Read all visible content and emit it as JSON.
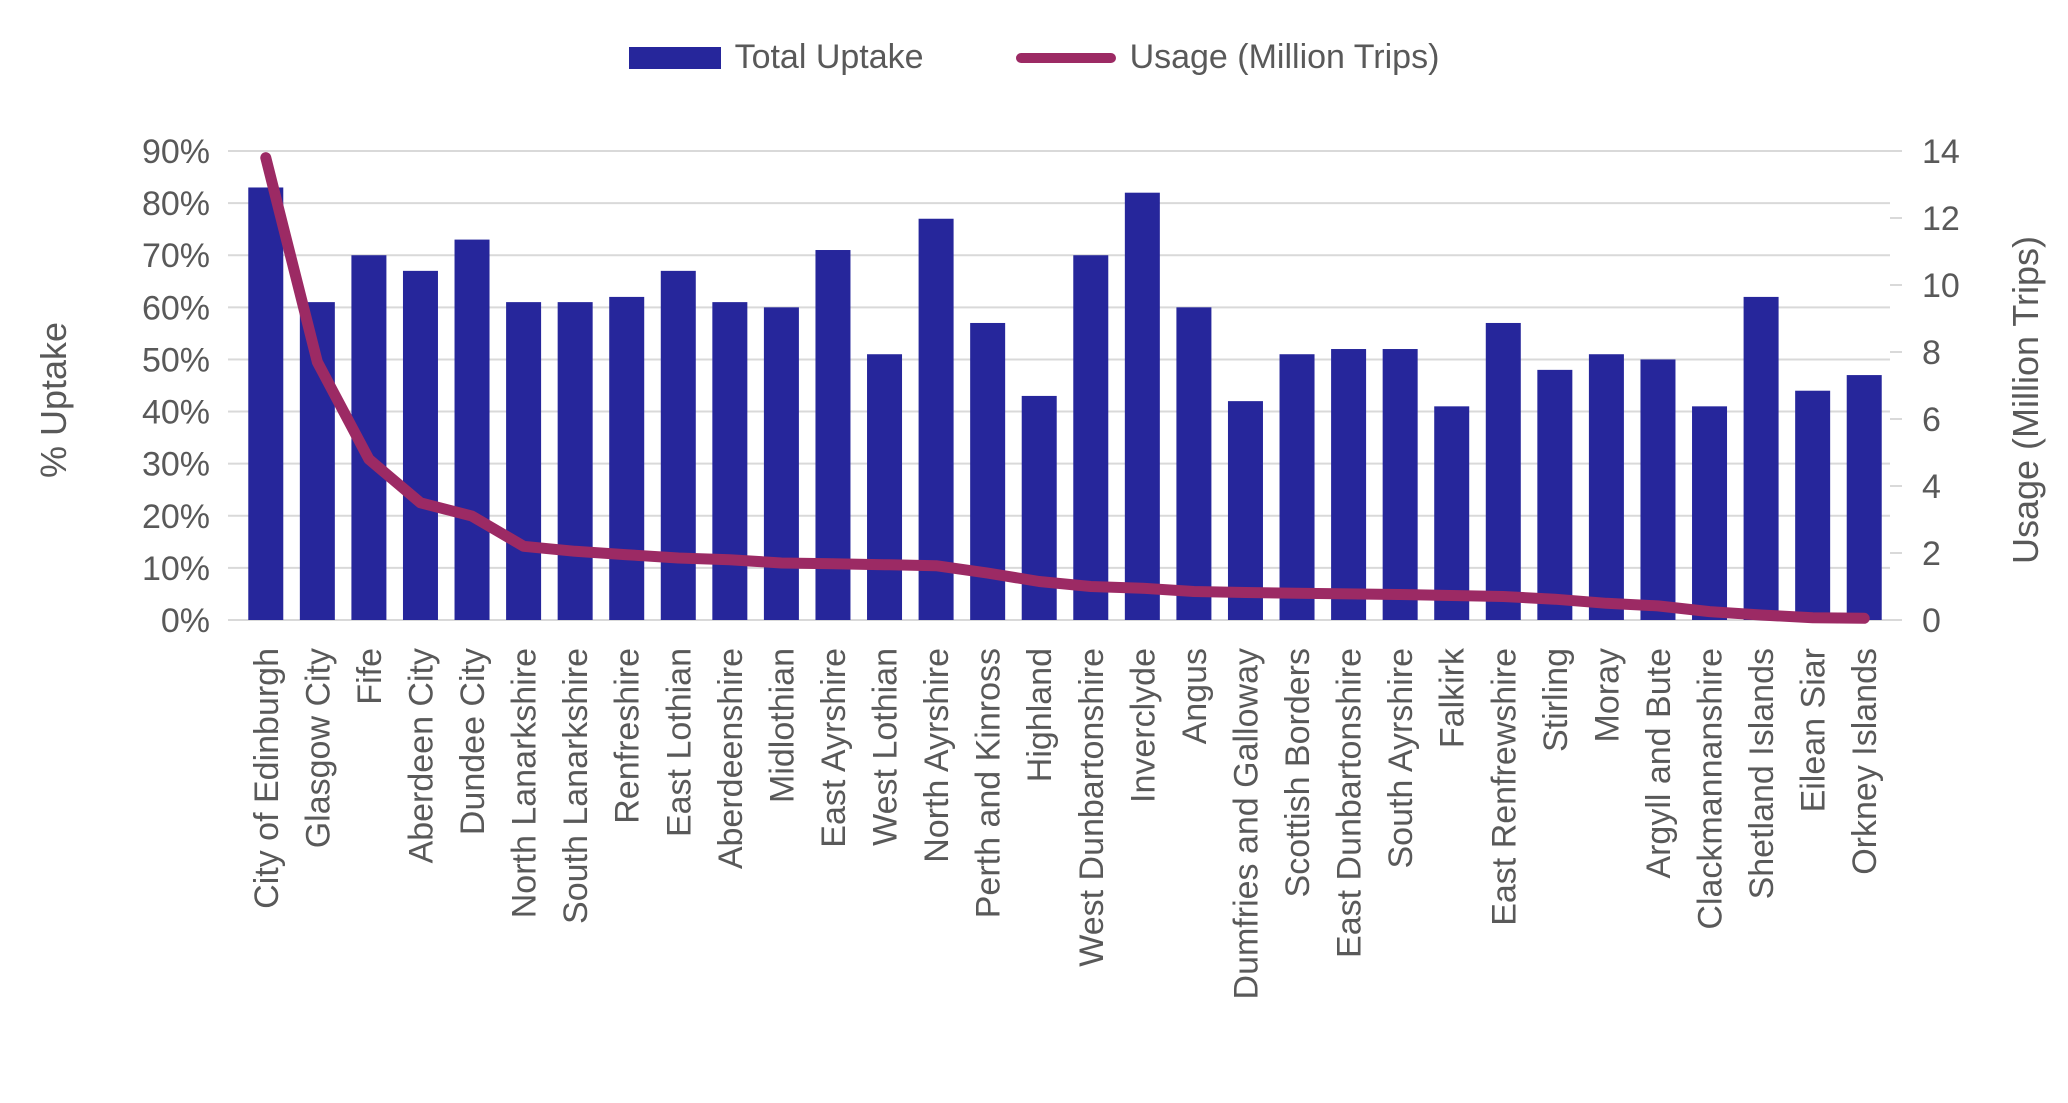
{
  "legend": {
    "items": [
      {
        "label": "Total Uptake",
        "swatch": "bar-swatch"
      },
      {
        "label": "Usage (Million Trips)",
        "swatch": "line-swatch"
      }
    ]
  },
  "colors": {
    "bar": "#26269B",
    "line": "#9C2A64",
    "text": "#595959",
    "grid": "#D9D9D9",
    "background": "#FFFFFF"
  },
  "chart_data": {
    "type": "bar",
    "subtype": "combo-bar-line-dual-axis",
    "categories": [
      "City of Edinburgh",
      "Glasgow City",
      "Fife",
      "Aberdeen City",
      "Dundee City",
      "North Lanarkshire",
      "South Lanarkshire",
      "Renfreshire",
      "East Lothian",
      "Aberdeenshire",
      "Midlothian",
      "East Ayrshire",
      "West Lothian",
      "North Ayrshire",
      "Perth and Kinross",
      "Highland",
      "West Dunbartonshire",
      "Inverclyde",
      "Angus",
      "Dumfries and Galloway",
      "Scottish Borders",
      "East Dunbartonshire",
      "South Ayrshire",
      "Falkirk",
      "East Renfrewshire",
      "Stirling",
      "Moray",
      "Argyll and Bute",
      "Clackmannanshire",
      "Shetland Islands",
      "Eilean Siar",
      "Orkney Islands"
    ],
    "series": [
      {
        "name": "Total Uptake",
        "type": "bar",
        "axis": "left",
        "unit": "%",
        "values": [
          83,
          61,
          70,
          67,
          73,
          61,
          61,
          62,
          67,
          61,
          60,
          71,
          51,
          77,
          57,
          43,
          70,
          82,
          60,
          42,
          51,
          52,
          52,
          41,
          57,
          48,
          51,
          50,
          41,
          62,
          44,
          47
        ]
      },
      {
        "name": "Usage (Million Trips)",
        "type": "line",
        "axis": "right",
        "unit": "million trips",
        "values": [
          13.8,
          7.7,
          4.8,
          3.5,
          3.1,
          2.2,
          2.05,
          1.95,
          1.85,
          1.8,
          1.7,
          1.68,
          1.65,
          1.62,
          1.4,
          1.15,
          1.0,
          0.95,
          0.85,
          0.82,
          0.8,
          0.78,
          0.76,
          0.73,
          0.7,
          0.62,
          0.5,
          0.42,
          0.25,
          0.15,
          0.07,
          0.05
        ]
      }
    ],
    "left_axis": {
      "title": "% Uptake",
      "min": 0,
      "max": 90,
      "ticks": [
        "0%",
        "10%",
        "20%",
        "30%",
        "40%",
        "50%",
        "60%",
        "70%",
        "80%",
        "90%"
      ]
    },
    "right_axis": {
      "title": "Usage (Million Trips)",
      "min": 0,
      "max": 14,
      "ticks": [
        "0",
        "2",
        "4",
        "6",
        "8",
        "10",
        "12",
        "14"
      ]
    },
    "grid": true,
    "legend_position": "top"
  }
}
